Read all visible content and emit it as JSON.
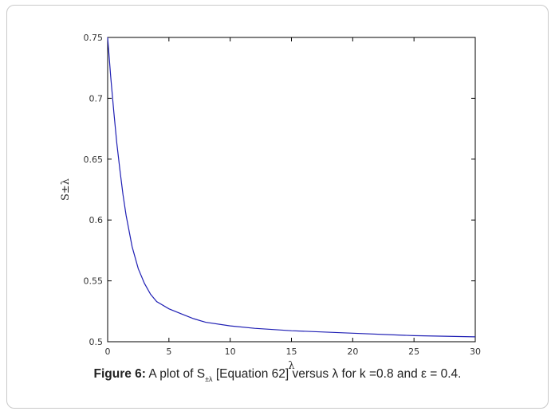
{
  "caption": {
    "label": "Figure 6:",
    "text_before_sub": "A plot of S",
    "subscript": "±λ",
    "text_after_sub": " [Equation 62] versus λ for k =0.8 and ε = 0.4."
  },
  "chart_data": {
    "type": "line",
    "title": "",
    "xlabel": "λ",
    "ylabel": "S±λ",
    "xlim": [
      0,
      30
    ],
    "ylim": [
      0.5,
      0.75
    ],
    "xticks": [
      0,
      5,
      10,
      15,
      20,
      25,
      30
    ],
    "yticks": [
      0.5,
      0.55,
      0.6,
      0.65,
      0.7,
      0.75
    ],
    "xtick_labels": [
      "0",
      "5",
      "10",
      "15",
      "20",
      "25",
      "30"
    ],
    "ytick_labels": [
      "0.5",
      "0.55",
      "0.6",
      "0.65",
      "0.7",
      "0.75"
    ],
    "grid": false,
    "series": [
      {
        "color": "#1f1fb4",
        "x": [
          0,
          0.25,
          0.5,
          0.75,
          1,
          1.25,
          1.5,
          2,
          2.5,
          3,
          3.5,
          4,
          5,
          6,
          7,
          8,
          10,
          12,
          15,
          20,
          25,
          30
        ],
        "y": [
          0.75,
          0.718,
          0.689,
          0.663,
          0.641,
          0.621,
          0.604,
          0.578,
          0.56,
          0.548,
          0.539,
          0.533,
          0.527,
          0.523,
          0.519,
          0.516,
          0.513,
          0.511,
          0.509,
          0.507,
          0.505,
          0.504
        ]
      }
    ]
  }
}
